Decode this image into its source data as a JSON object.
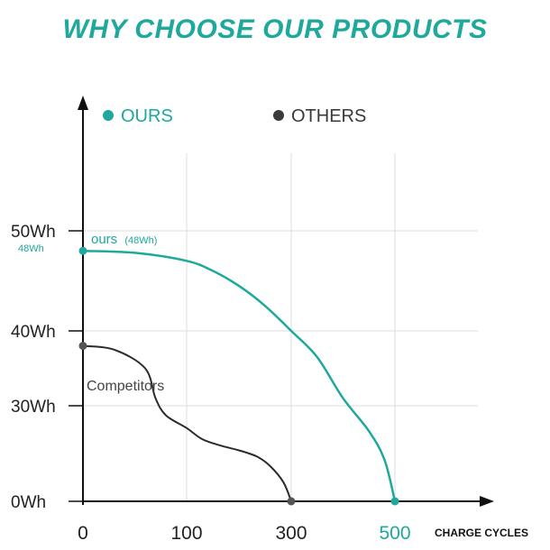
{
  "header": {
    "title": "WHY CHOOSE OUR PRODUCTS"
  },
  "colors": {
    "ours": "#1fa89c",
    "others": "#3a3a3a",
    "grid": "#dcdcdc",
    "axis": "#111111"
  },
  "chart_data": {
    "type": "line",
    "title": "WHY CHOOSE OUR PRODUCTS",
    "xlabel": "CHARGE CYCLES",
    "ylabel": "",
    "x_ticks": [
      {
        "value": 0,
        "label": "0"
      },
      {
        "value": 100,
        "label": "100"
      },
      {
        "value": 300,
        "label": "300"
      },
      {
        "value": 500,
        "label": "500"
      }
    ],
    "y_ticks": [
      {
        "value": 0,
        "label": "0Wh"
      },
      {
        "value": 30,
        "label": "30Wh"
      },
      {
        "value": 40,
        "label": "40Wh"
      },
      {
        "value": 50,
        "label": "50Wh"
      }
    ],
    "legend": {
      "placement": "top",
      "entries": [
        {
          "name": "OURS",
          "color": "#1fa89c"
        },
        {
          "name": "OTHERS",
          "color": "#3a3a3a"
        }
      ]
    },
    "series": [
      {
        "name": "OURS",
        "color": "#1fa89c",
        "label_main": "ours",
        "label_sub": "(48Wh)",
        "start_label": "48Wh",
        "points": [
          [
            0,
            48
          ],
          [
            50,
            47.8
          ],
          [
            100,
            47
          ],
          [
            150,
            46
          ],
          [
            200,
            44.5
          ],
          [
            250,
            42.5
          ],
          [
            300,
            40
          ],
          [
            350,
            36.5
          ],
          [
            400,
            31
          ],
          [
            450,
            22
          ],
          [
            480,
            13
          ],
          [
            500,
            0
          ]
        ]
      },
      {
        "name": "OTHERS",
        "color": "#3a3a3a",
        "label_main": "Competitors",
        "points": [
          [
            0,
            38
          ],
          [
            30,
            37.5
          ],
          [
            60,
            35
          ],
          [
            70,
            31
          ],
          [
            80,
            27
          ],
          [
            100,
            23
          ],
          [
            130,
            19.5
          ],
          [
            165,
            17.5
          ],
          [
            200,
            16
          ],
          [
            235,
            14
          ],
          [
            260,
            11
          ],
          [
            285,
            6
          ],
          [
            300,
            0
          ]
        ]
      }
    ],
    "end_labels": {
      "others_end": "300",
      "ours_end": "500"
    },
    "grid": true
  }
}
